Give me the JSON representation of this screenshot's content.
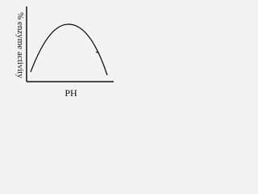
{
  "y_label": "% enzyme activity",
  "x_label": "PH"
}
